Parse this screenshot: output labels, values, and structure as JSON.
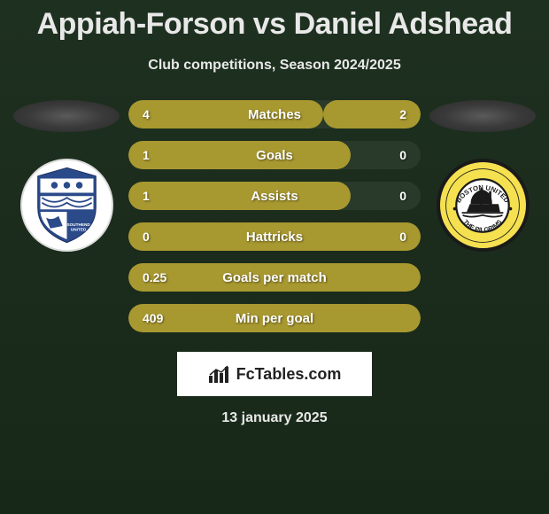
{
  "title": "Appiah-Forson vs Daniel Adshead",
  "subtitle": "Club competitions, Season 2024/2025",
  "date": "13 january 2025",
  "logo_text": "FcTables.com",
  "colors": {
    "bar_fill": "#a89830",
    "bar_bg": "#2a3a2a",
    "page_bg_top": "#1e3020",
    "page_bg_bottom": "#182818",
    "crest_left_bg": "#ffffff",
    "crest_right_bg": "#f5e050"
  },
  "stats": [
    {
      "label": "Matches",
      "left_val": "4",
      "right_val": "2",
      "left_pct": 66.6,
      "right_pct": 33.3,
      "equal": false,
      "full_left": false,
      "full_right": false
    },
    {
      "label": "Goals",
      "left_val": "1",
      "right_val": "0",
      "left_pct": 76,
      "right_pct": 0,
      "equal": false,
      "full_left": true,
      "full_right": false
    },
    {
      "label": "Assists",
      "left_val": "1",
      "right_val": "0",
      "left_pct": 76,
      "right_pct": 0,
      "equal": false,
      "full_left": true,
      "full_right": false
    },
    {
      "label": "Hattricks",
      "left_val": "0",
      "right_val": "0",
      "left_pct": 0,
      "right_pct": 0,
      "equal": true,
      "full_left": false,
      "full_right": false
    },
    {
      "label": "Goals per match",
      "left_val": "0.25",
      "right_val": "",
      "left_pct": 100,
      "right_pct": 0,
      "equal": false,
      "full_left": true,
      "full_right": false
    },
    {
      "label": "Min per goal",
      "left_val": "409",
      "right_val": "",
      "left_pct": 100,
      "right_pct": 0,
      "equal": false,
      "full_left": true,
      "full_right": false
    }
  ]
}
